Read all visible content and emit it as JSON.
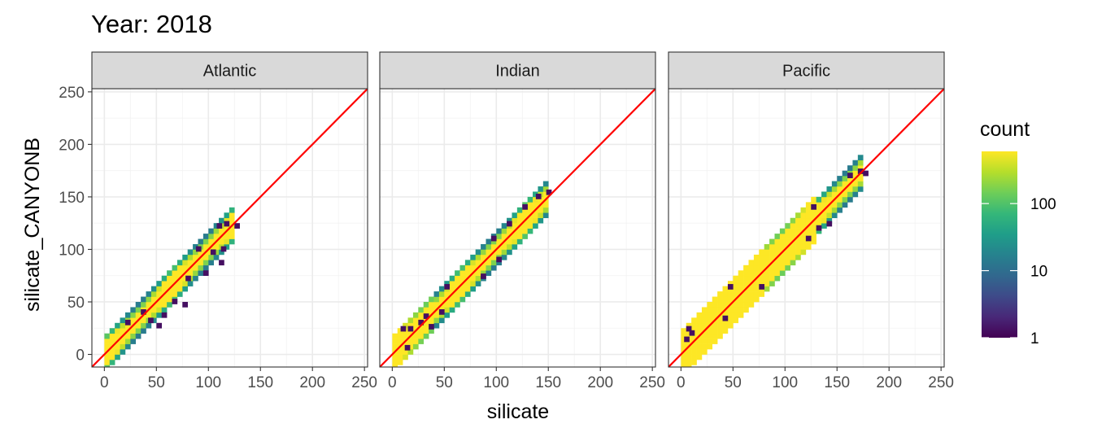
{
  "chart_data": {
    "type": "heatmap",
    "title": "Year: 2018",
    "xlabel": "silicate",
    "ylabel": "silicate_CANYONB",
    "xlim": [
      -12,
      253
    ],
    "ylim": [
      -12,
      253
    ],
    "x_ticks": [
      0,
      50,
      100,
      150,
      200,
      250
    ],
    "y_ticks": [
      0,
      50,
      100,
      150,
      200,
      250
    ],
    "grid": true,
    "reference_line": {
      "slope": 1,
      "intercept": 0,
      "color": "#ff0000"
    },
    "bin_width": 5,
    "facets": [
      {
        "name": "Atlantic",
        "segments": [
          [
            0,
            30,
            1.0,
            3,
            4
          ],
          [
            30,
            60,
            0.98,
            3,
            4
          ],
          [
            60,
            95,
            1.0,
            3,
            4
          ],
          [
            95,
            125,
            1.0,
            3,
            4
          ]
        ],
        "outliers": [
          [
            20,
            28
          ],
          [
            30,
            35
          ],
          [
            35,
            38
          ],
          [
            42,
            30
          ],
          [
            50,
            25
          ],
          [
            55,
            35
          ],
          [
            65,
            48
          ],
          [
            70,
            55
          ],
          [
            75,
            45
          ],
          [
            78,
            70
          ],
          [
            85,
            100
          ],
          [
            88,
            98
          ],
          [
            95,
            75
          ],
          [
            102,
            95
          ],
          [
            110,
            85
          ],
          [
            120,
            110
          ],
          [
            125,
            120
          ],
          [
            115,
            122
          ],
          [
            108,
            120
          ],
          [
            112,
            98
          ]
        ]
      },
      {
        "name": "Indian",
        "segments": [
          [
            0,
            40,
            1.0,
            3,
            5
          ],
          [
            40,
            95,
            1.0,
            3,
            4
          ],
          [
            95,
            150,
            1.0,
            3,
            4
          ]
        ],
        "outliers": [
          [
            5,
            20
          ],
          [
            8,
            22
          ],
          [
            10,
            20
          ],
          [
            12,
            4
          ],
          [
            15,
            22
          ],
          [
            20,
            10
          ],
          [
            25,
            28
          ],
          [
            30,
            34
          ],
          [
            35,
            24
          ],
          [
            40,
            45
          ],
          [
            45,
            38
          ],
          [
            50,
            62
          ],
          [
            55,
            45
          ],
          [
            65,
            75
          ],
          [
            75,
            60
          ],
          [
            80,
            90
          ],
          [
            85,
            72
          ],
          [
            95,
            108
          ],
          [
            100,
            88
          ],
          [
            110,
            122
          ],
          [
            120,
            105
          ],
          [
            125,
            138
          ],
          [
            130,
            120
          ],
          [
            138,
            148
          ],
          [
            140,
            135
          ],
          [
            145,
            145
          ],
          [
            148,
            152
          ]
        ]
      },
      {
        "name": "Pacific",
        "segments": [
          [
            0,
            30,
            1.0,
            4,
            6
          ],
          [
            30,
            80,
            1.0,
            4,
            6
          ],
          [
            80,
            130,
            1.0,
            4,
            5
          ],
          [
            130,
            175,
            1.0,
            3,
            4
          ]
        ],
        "outliers": [
          [
            0,
            20
          ],
          [
            5,
            22
          ],
          [
            8,
            18
          ],
          [
            10,
            15
          ],
          [
            3,
            12
          ],
          [
            20,
            35
          ],
          [
            25,
            40
          ],
          [
            30,
            15
          ],
          [
            35,
            20
          ],
          [
            40,
            32
          ],
          [
            45,
            62
          ],
          [
            50,
            65
          ],
          [
            55,
            40
          ],
          [
            60,
            75
          ],
          [
            65,
            50
          ],
          [
            70,
            85
          ],
          [
            75,
            62
          ],
          [
            80,
            95
          ],
          [
            85,
            70
          ],
          [
            90,
            105
          ],
          [
            100,
            85
          ],
          [
            105,
            120
          ],
          [
            110,
            95
          ],
          [
            115,
            130
          ],
          [
            120,
            108
          ],
          [
            125,
            138
          ],
          [
            130,
            118
          ],
          [
            135,
            140
          ],
          [
            140,
            122
          ],
          [
            145,
            145
          ],
          [
            150,
            140
          ],
          [
            160,
            168
          ],
          [
            165,
            160
          ],
          [
            170,
            172
          ],
          [
            175,
            170
          ]
        ]
      }
    ],
    "color_scale": {
      "name": "count",
      "transform": "log10",
      "range": [
        1,
        600
      ],
      "breaks": [
        1,
        10,
        100
      ],
      "break_labels": [
        "1",
        "10",
        "100"
      ],
      "colors": [
        "#440154",
        "#482878",
        "#3e4a89",
        "#31688e",
        "#26828e",
        "#1f9e89",
        "#35b779",
        "#6ece58",
        "#b5de2b",
        "#fde725"
      ]
    }
  }
}
